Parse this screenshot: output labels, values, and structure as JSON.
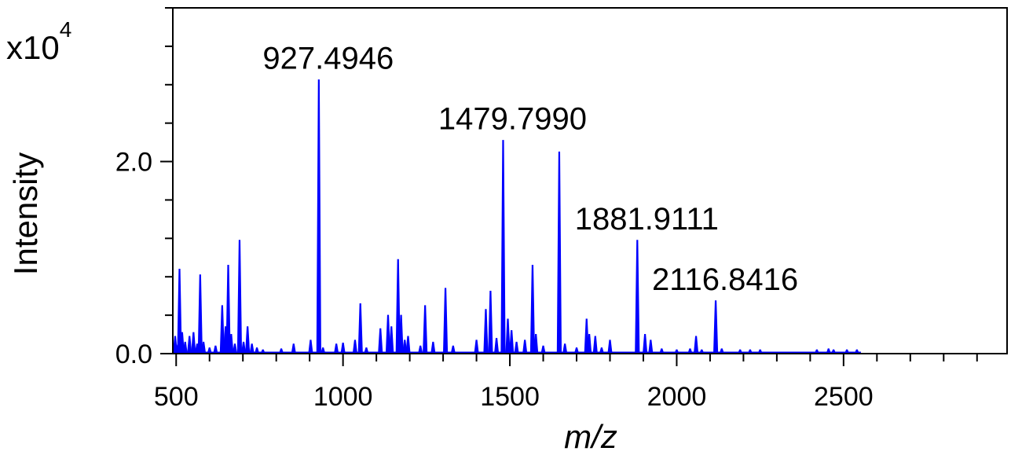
{
  "chart_data": {
    "type": "line",
    "title": "",
    "xlabel": "m/z",
    "ylabel": "Intensity",
    "y_multiplier": "x10",
    "y_multiplier_exponent": "4",
    "xlim": [
      490,
      2990
    ],
    "ylim": [
      0,
      3.6
    ],
    "x_ticks": [
      500,
      1000,
      1500,
      2000,
      2500
    ],
    "x_tick_labels": [
      "500",
      "1000",
      "1500",
      "2000",
      "2500"
    ],
    "y_ticks": [
      0.0,
      2.0
    ],
    "y_tick_labels": [
      "0.0",
      "2.0"
    ],
    "grid": false,
    "color": "#0000ff",
    "peaks": [
      {
        "x": 497,
        "y": 0.18
      },
      {
        "x": 505,
        "y": 0.09
      },
      {
        "x": 510,
        "y": 0.88
      },
      {
        "x": 518,
        "y": 0.22
      },
      {
        "x": 527,
        "y": 0.12
      },
      {
        "x": 540,
        "y": 0.18
      },
      {
        "x": 552,
        "y": 0.22
      },
      {
        "x": 563,
        "y": 0.1
      },
      {
        "x": 572,
        "y": 0.82
      },
      {
        "x": 582,
        "y": 0.12
      },
      {
        "x": 600,
        "y": 0.06
      },
      {
        "x": 618,
        "y": 0.08
      },
      {
        "x": 638,
        "y": 0.5
      },
      {
        "x": 648,
        "y": 0.28
      },
      {
        "x": 656,
        "y": 0.92
      },
      {
        "x": 665,
        "y": 0.2
      },
      {
        "x": 676,
        "y": 0.1
      },
      {
        "x": 690,
        "y": 1.18
      },
      {
        "x": 702,
        "y": 0.12
      },
      {
        "x": 714,
        "y": 0.28
      },
      {
        "x": 727,
        "y": 0.1
      },
      {
        "x": 742,
        "y": 0.06
      },
      {
        "x": 760,
        "y": 0.04
      },
      {
        "x": 815,
        "y": 0.05
      },
      {
        "x": 852,
        "y": 0.1
      },
      {
        "x": 903,
        "y": 0.14
      },
      {
        "x": 927.4946,
        "y": 2.85
      },
      {
        "x": 940,
        "y": 0.06
      },
      {
        "x": 980,
        "y": 0.1
      },
      {
        "x": 1000,
        "y": 0.11
      },
      {
        "x": 1036,
        "y": 0.14
      },
      {
        "x": 1052,
        "y": 0.52
      },
      {
        "x": 1070,
        "y": 0.06
      },
      {
        "x": 1112,
        "y": 0.26
      },
      {
        "x": 1135,
        "y": 0.4
      },
      {
        "x": 1145,
        "y": 0.28
      },
      {
        "x": 1165,
        "y": 0.98
      },
      {
        "x": 1174,
        "y": 0.4
      },
      {
        "x": 1185,
        "y": 0.14
      },
      {
        "x": 1195,
        "y": 0.18
      },
      {
        "x": 1232,
        "y": 0.08
      },
      {
        "x": 1246,
        "y": 0.5
      },
      {
        "x": 1270,
        "y": 0.12
      },
      {
        "x": 1307,
        "y": 0.68
      },
      {
        "x": 1330,
        "y": 0.08
      },
      {
        "x": 1400,
        "y": 0.14
      },
      {
        "x": 1428,
        "y": 0.46
      },
      {
        "x": 1442,
        "y": 0.65
      },
      {
        "x": 1460,
        "y": 0.16
      },
      {
        "x": 1479.799,
        "y": 2.22
      },
      {
        "x": 1494,
        "y": 0.36
      },
      {
        "x": 1505,
        "y": 0.24
      },
      {
        "x": 1520,
        "y": 0.12
      },
      {
        "x": 1545,
        "y": 0.14
      },
      {
        "x": 1568,
        "y": 0.92
      },
      {
        "x": 1578,
        "y": 0.2
      },
      {
        "x": 1600,
        "y": 0.08
      },
      {
        "x": 1648,
        "y": 2.1
      },
      {
        "x": 1665,
        "y": 0.1
      },
      {
        "x": 1700,
        "y": 0.06
      },
      {
        "x": 1730,
        "y": 0.36
      },
      {
        "x": 1738,
        "y": 0.2
      },
      {
        "x": 1756,
        "y": 0.18
      },
      {
        "x": 1775,
        "y": 0.06
      },
      {
        "x": 1800,
        "y": 0.14
      },
      {
        "x": 1881.9111,
        "y": 1.18
      },
      {
        "x": 1905,
        "y": 0.2
      },
      {
        "x": 1922,
        "y": 0.14
      },
      {
        "x": 1955,
        "y": 0.05
      },
      {
        "x": 2000,
        "y": 0.04
      },
      {
        "x": 2040,
        "y": 0.05
      },
      {
        "x": 2058,
        "y": 0.18
      },
      {
        "x": 2075,
        "y": 0.04
      },
      {
        "x": 2116.8416,
        "y": 0.55
      },
      {
        "x": 2135,
        "y": 0.05
      },
      {
        "x": 2190,
        "y": 0.04
      },
      {
        "x": 2220,
        "y": 0.04
      },
      {
        "x": 2250,
        "y": 0.04
      },
      {
        "x": 2420,
        "y": 0.04
      },
      {
        "x": 2455,
        "y": 0.05
      },
      {
        "x": 2470,
        "y": 0.04
      },
      {
        "x": 2510,
        "y": 0.04
      },
      {
        "x": 2540,
        "y": 0.04
      }
    ],
    "annotations": [
      {
        "x": 927.4946,
        "y": 2.85,
        "text": "927.4946"
      },
      {
        "x": 1479.799,
        "y": 2.22,
        "text": "1479.7990"
      },
      {
        "x": 1881.9111,
        "y": 1.18,
        "text": "1881.9111"
      },
      {
        "x": 2116.8416,
        "y": 0.55,
        "text": "2116.8416"
      }
    ]
  }
}
